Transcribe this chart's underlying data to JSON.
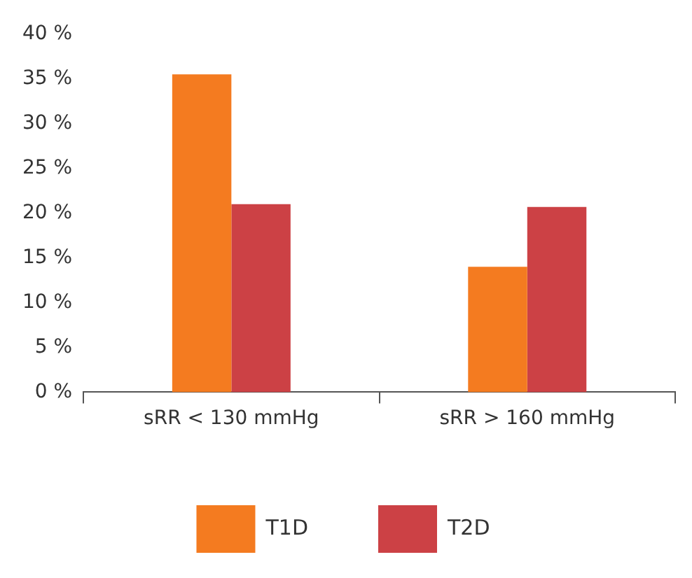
{
  "chart_data": {
    "type": "bar",
    "categories": [
      "sRR < 130 mmHg",
      "sRR > 160 mmHg"
    ],
    "series": [
      {
        "name": "T1D",
        "color": "#f47b20",
        "values": [
          35.5,
          14
        ]
      },
      {
        "name": "T2D",
        "color": "#cc4145",
        "values": [
          21,
          20.7
        ]
      }
    ],
    "ylim": [
      0,
      40
    ],
    "yticks": [
      {
        "value": 0,
        "label": "0 %"
      },
      {
        "value": 5,
        "label": "5 %"
      },
      {
        "value": 10,
        "label": "10 %"
      },
      {
        "value": 15,
        "label": "15 %"
      },
      {
        "value": 20,
        "label": "20 %"
      },
      {
        "value": 25,
        "label": "25 %"
      },
      {
        "value": 30,
        "label": "30 %"
      },
      {
        "value": 35,
        "label": "35 %"
      },
      {
        "value": 40,
        "label": "40 %"
      }
    ],
    "grid": false,
    "legend": "bottom"
  }
}
